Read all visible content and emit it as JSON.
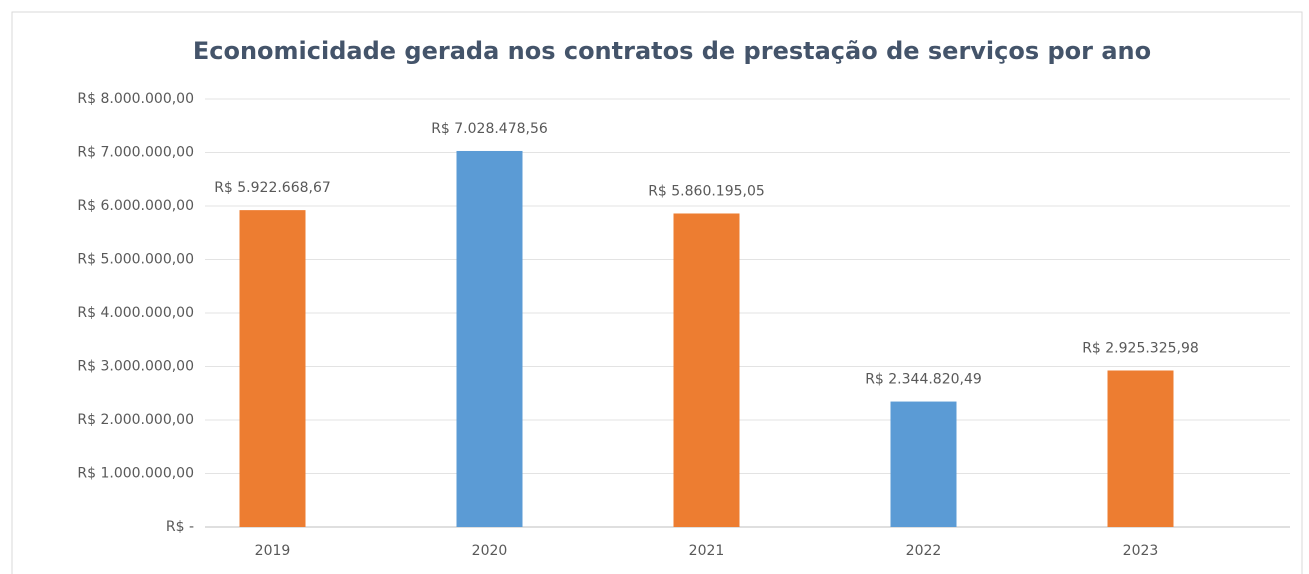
{
  "chart_data": {
    "type": "bar",
    "title": "Economicidade gerada nos contratos de prestação de  serviços por ano",
    "categories": [
      "2019",
      "2020",
      "2021",
      "2022",
      "2023"
    ],
    "values": [
      5922668.67,
      7028478.56,
      5860195.05,
      2344820.49,
      2925325.98
    ],
    "value_labels": [
      "R$ 5.922.668,67",
      "R$ 7.028.478,56",
      "R$ 5.860.195,05",
      "R$ 2.344.820,49",
      "R$ 2.925.325,98"
    ],
    "colors": [
      "#ed7d31",
      "#5b9bd5",
      "#ed7d31",
      "#5b9bd5",
      "#ed7d31"
    ],
    "ylim": [
      0,
      8000000
    ],
    "yticks": [
      {
        "value": 0,
        "label": "R$ -"
      },
      {
        "value": 1000000,
        "label": "R$ 1.000.000,00"
      },
      {
        "value": 2000000,
        "label": "R$ 2.000.000,00"
      },
      {
        "value": 3000000,
        "label": "R$ 3.000.000,00"
      },
      {
        "value": 4000000,
        "label": "R$ 4.000.000,00"
      },
      {
        "value": 5000000,
        "label": "R$ 5.000.000,00"
      },
      {
        "value": 6000000,
        "label": "R$ 6.000.000,00"
      },
      {
        "value": 7000000,
        "label": "R$ 7.000.000,00"
      },
      {
        "value": 8000000,
        "label": "R$ 8.000.000,00"
      }
    ],
    "grid": true
  }
}
